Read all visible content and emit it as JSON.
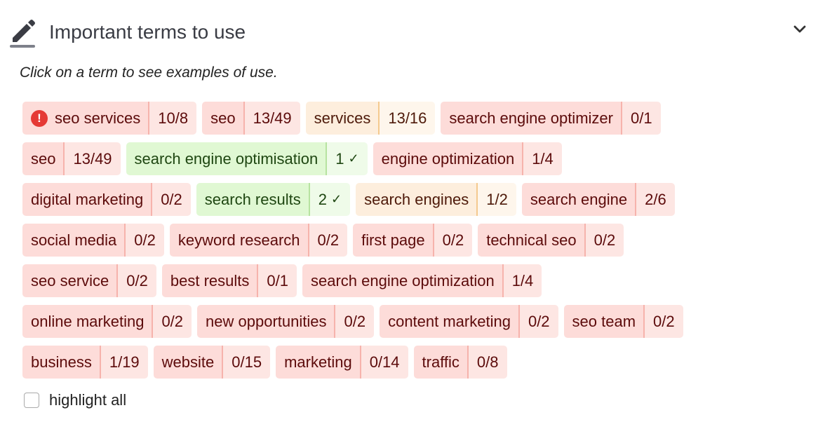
{
  "header": {
    "title": "Important terms to use",
    "icon": "pencil-icon",
    "collapse_icon": "chevron-down-icon"
  },
  "hint": "Click on a term to see examples of use.",
  "rows": [
    [
      {
        "term": "seo services",
        "count": "10/8",
        "status": "red",
        "warning": true
      },
      {
        "term": "seo",
        "count": "13/49",
        "status": "red"
      },
      {
        "term": "services",
        "count": "13/16",
        "status": "orange"
      },
      {
        "term": "search engine optimizer",
        "count": "0/1",
        "status": "red"
      }
    ],
    [
      {
        "term": "seo",
        "count": "13/49",
        "status": "red"
      },
      {
        "term": "search engine optimisation",
        "count": "1",
        "status": "green",
        "check": true
      },
      {
        "term": "engine optimization",
        "count": "1/4",
        "status": "red"
      }
    ],
    [
      {
        "term": "digital marketing",
        "count": "0/2",
        "status": "red"
      },
      {
        "term": "search results",
        "count": "2",
        "status": "green",
        "check": true
      },
      {
        "term": "search engines",
        "count": "1/2",
        "status": "orange"
      },
      {
        "term": "search engine",
        "count": "2/6",
        "status": "red"
      }
    ],
    [
      {
        "term": "social media",
        "count": "0/2",
        "status": "red"
      },
      {
        "term": "keyword research",
        "count": "0/2",
        "status": "red"
      },
      {
        "term": "first page",
        "count": "0/2",
        "status": "red"
      },
      {
        "term": "technical seo",
        "count": "0/2",
        "status": "red"
      }
    ],
    [
      {
        "term": "seo service",
        "count": "0/2",
        "status": "red"
      },
      {
        "term": "best results",
        "count": "0/1",
        "status": "red"
      },
      {
        "term": "search engine optimization",
        "count": "1/4",
        "status": "red"
      }
    ],
    [
      {
        "term": "online marketing",
        "count": "0/2",
        "status": "red"
      },
      {
        "term": "new opportunities",
        "count": "0/2",
        "status": "red"
      },
      {
        "term": "content marketing",
        "count": "0/2",
        "status": "red"
      },
      {
        "term": "seo team",
        "count": "0/2",
        "status": "red"
      }
    ],
    [
      {
        "term": "business",
        "count": "1/19",
        "status": "red"
      },
      {
        "term": "website",
        "count": "0/15",
        "status": "red"
      },
      {
        "term": "marketing",
        "count": "0/14",
        "status": "red"
      },
      {
        "term": "traffic",
        "count": "0/8",
        "status": "red"
      }
    ]
  ],
  "highlight_all": {
    "label": "highlight all",
    "checked": false
  },
  "warning_glyph": "!",
  "check_glyph": "✓"
}
